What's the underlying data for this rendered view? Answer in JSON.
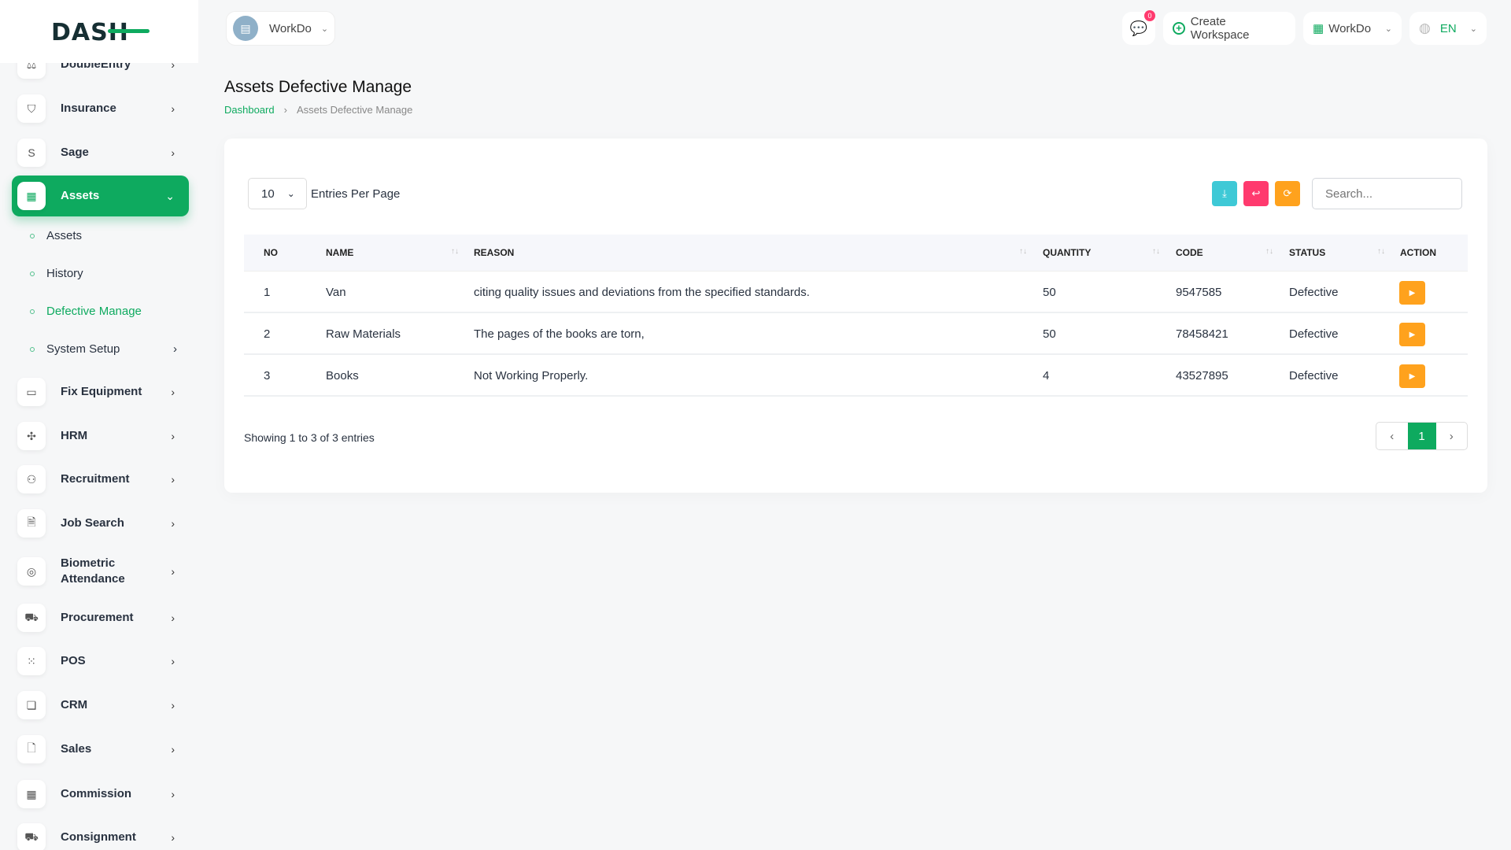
{
  "brand": {
    "logo": "DASH",
    "accent": "#0eaa5f"
  },
  "topbar": {
    "workspace_select": "WorkDo",
    "chat_badge": "0",
    "create_workspace": "Create Workspace",
    "workspace_menu": "WorkDo",
    "language": "EN"
  },
  "sidebar": {
    "items": [
      {
        "label": "DoubleEntry",
        "icon": "scale-icon"
      },
      {
        "label": "Insurance",
        "icon": "shield-icon"
      },
      {
        "label": "Sage",
        "icon": "s-icon"
      },
      {
        "label": "Assets",
        "icon": "calculator-icon",
        "active": true
      },
      {
        "label": "Fix Equipment",
        "icon": "archive-icon"
      },
      {
        "label": "HRM",
        "icon": "hrm-icon"
      },
      {
        "label": "Recruitment",
        "icon": "user-plus-icon"
      },
      {
        "label": "Job Search",
        "icon": "file-search-icon"
      },
      {
        "label": "Biometric Attendance",
        "icon": "fingerprint-icon"
      },
      {
        "label": "Procurement",
        "icon": "cart-icon"
      },
      {
        "label": "POS",
        "icon": "grid-icon"
      },
      {
        "label": "CRM",
        "icon": "crm-icon"
      },
      {
        "label": "Sales",
        "icon": "file-icon"
      },
      {
        "label": "Commission",
        "icon": "calculator-icon"
      },
      {
        "label": "Consignment",
        "icon": "truck-icon"
      }
    ],
    "sub_items": [
      {
        "label": "Assets"
      },
      {
        "label": "History"
      },
      {
        "label": "Defective Manage",
        "active": true
      },
      {
        "label": "System Setup"
      }
    ]
  },
  "page": {
    "title": "Assets Defective Manage",
    "breadcrumb": [
      "Dashboard",
      "Assets Defective Manage"
    ]
  },
  "table": {
    "entries_value": "10",
    "entries_label": "Entries Per Page",
    "search_placeholder": "Search...",
    "columns": [
      "NO",
      "NAME",
      "REASON",
      "QUANTITY",
      "CODE",
      "STATUS",
      "ACTION"
    ],
    "rows": [
      {
        "no": "1",
        "name": "Van",
        "reason": "citing quality issues and deviations from the specified standards.",
        "quantity": "50",
        "code": "9547585",
        "status": "Defective"
      },
      {
        "no": "2",
        "name": "Raw Materials",
        "reason": "The pages of the books are torn,",
        "quantity": "50",
        "code": "78458421",
        "status": "Defective"
      },
      {
        "no": "3",
        "name": "Books",
        "reason": "Not Working Properly.",
        "quantity": "4",
        "code": "43527895",
        "status": "Defective"
      }
    ],
    "footer": "Showing 1 to 3 of 3 entries",
    "current_page": "1"
  }
}
